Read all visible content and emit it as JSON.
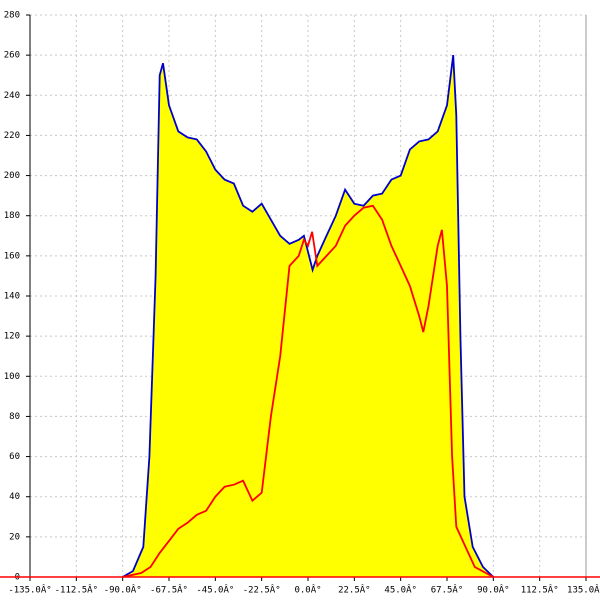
{
  "chart_data": {
    "type": "area_line",
    "xlim": [
      -135,
      135
    ],
    "xticks": [
      {
        "value": -135,
        "label": "-135.0Â°"
      },
      {
        "value": -112.5,
        "label": "-112.5Â°"
      },
      {
        "value": -90,
        "label": "-90.0Â°"
      },
      {
        "value": -67.5,
        "label": "-67.5Â°"
      },
      {
        "value": -45,
        "label": "-45.0Â°"
      },
      {
        "value": -22.5,
        "label": "-22.5Â°"
      },
      {
        "value": 0,
        "label": "0.0Â°"
      },
      {
        "value": 22.5,
        "label": "22.5Â°"
      },
      {
        "value": 45,
        "label": "45.0Â°"
      },
      {
        "value": 67.5,
        "label": "67.5Â°"
      },
      {
        "value": 90,
        "label": "90.0Â°"
      },
      {
        "value": 112.5,
        "label": "112.5Â°"
      },
      {
        "value": 135,
        "label": "135.0Â°"
      }
    ],
    "ylim": [
      0,
      280
    ],
    "yticks": [
      0,
      20,
      40,
      60,
      80,
      100,
      120,
      140,
      160,
      180,
      200,
      220,
      240,
      260,
      280
    ],
    "grid": true,
    "series": [
      {
        "color": "#0000cc",
        "fill": "#ffff00",
        "x": [
          -90,
          -85,
          -80,
          -77,
          -74,
          -72,
          -70.4,
          -67.5,
          -63,
          -58.5,
          -54,
          -49.5,
          -45,
          -40.5,
          -36,
          -31.5,
          -27,
          -22.5,
          -18,
          -13.5,
          -9,
          -4.5,
          -2,
          0,
          2.25,
          4.5,
          9,
          13.5,
          18,
          22.5,
          27,
          31.5,
          36,
          40.5,
          45,
          49.5,
          54,
          58.5,
          63,
          67.5,
          70.5,
          72,
          74,
          76,
          80,
          85,
          90
        ],
        "values": [
          0,
          3,
          15,
          60,
          150,
          250,
          256,
          235,
          222,
          219,
          218,
          212,
          203,
          198,
          196,
          185,
          182,
          186,
          178,
          170,
          166,
          168,
          170,
          162,
          153,
          160,
          170,
          180,
          193,
          186,
          185,
          190,
          191,
          198,
          200,
          213,
          217,
          218,
          222,
          235,
          260,
          230,
          120,
          40,
          15,
          5,
          0
        ]
      },
      {
        "color": "#ff0000",
        "x": [
          -90,
          -81,
          -76.5,
          -72,
          -67.5,
          -63,
          -58.5,
          -54,
          -49.5,
          -45,
          -40.5,
          -36,
          -31.5,
          -27,
          -22.5,
          -18,
          -13.5,
          -9,
          -4.5,
          -2,
          0,
          2,
          4.5,
          9,
          13.5,
          18,
          22.5,
          27,
          31.5,
          36,
          40.5,
          45,
          49.5,
          54,
          56,
          58.5,
          63,
          65,
          67.5,
          70,
          72,
          76.5,
          81,
          90
        ],
        "values": [
          0,
          2,
          5,
          12,
          18,
          24,
          27,
          31,
          33,
          40,
          45,
          46,
          48,
          38,
          42,
          80,
          110,
          155,
          160,
          168,
          165,
          172,
          155,
          160,
          165,
          175,
          180,
          184,
          185,
          178,
          165,
          155,
          145,
          130,
          122,
          135,
          165,
          173,
          145,
          60,
          25,
          15,
          5,
          0
        ]
      }
    ]
  }
}
